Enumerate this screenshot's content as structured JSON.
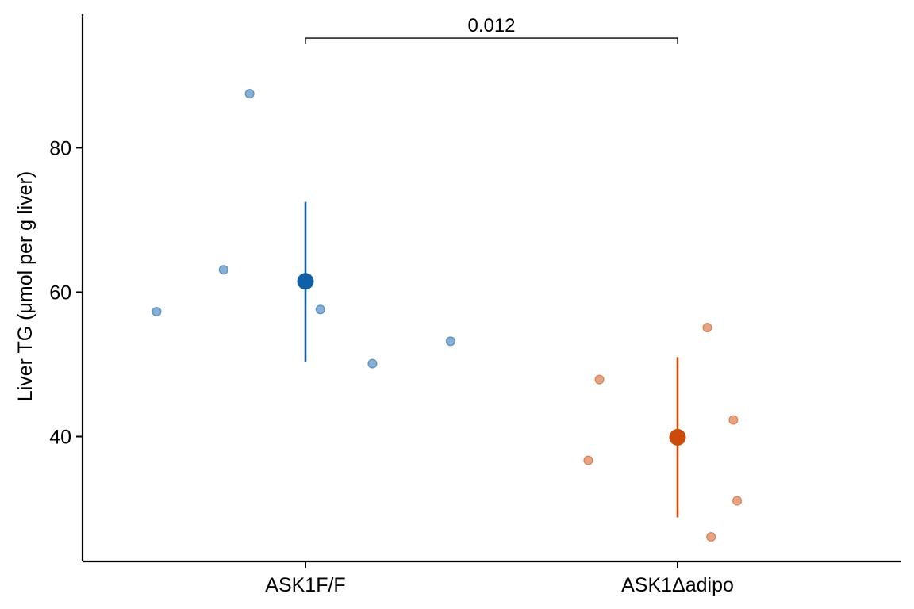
{
  "chart_data": {
    "type": "scatter",
    "title": "",
    "xlabel": "",
    "ylabel": "Liver TG (μmol per g liver)",
    "categories": [
      "ASK1F/F",
      "ASK1Δadipo"
    ],
    "ylim": [
      22.7,
      98.5
    ],
    "yticks": [
      40,
      60,
      80
    ],
    "grid": false,
    "legend": "none",
    "series": [
      {
        "category": "ASK1F/F",
        "color": "#1060a8",
        "points": [
          {
            "offset": -0.4,
            "y": 57.3
          },
          {
            "offset": -0.22,
            "y": 63.1
          },
          {
            "offset": -0.15,
            "y": 87.5
          },
          {
            "offset": 0.04,
            "y": 57.6
          },
          {
            "offset": 0.18,
            "y": 50.1
          },
          {
            "offset": 0.39,
            "y": 53.2
          }
        ],
        "mean": 61.5,
        "error": [
          50.4,
          72.5
        ]
      },
      {
        "category": "ASK1Δadipo",
        "color": "#cc4a0a",
        "points": [
          {
            "offset": -0.24,
            "y": 36.7
          },
          {
            "offset": -0.21,
            "y": 47.9
          },
          {
            "offset": 0.08,
            "y": 55.1
          },
          {
            "offset": 0.09,
            "y": 26.1
          },
          {
            "offset": 0.15,
            "y": 42.3
          },
          {
            "offset": 0.16,
            "y": 31.1
          }
        ],
        "mean": 39.9,
        "error": [
          28.8,
          51.0
        ]
      }
    ],
    "annotations": [
      {
        "type": "bracket",
        "from": "ASK1F/F",
        "to": "ASK1Δadipo",
        "y": 95.2,
        "label": "0.012"
      }
    ]
  }
}
